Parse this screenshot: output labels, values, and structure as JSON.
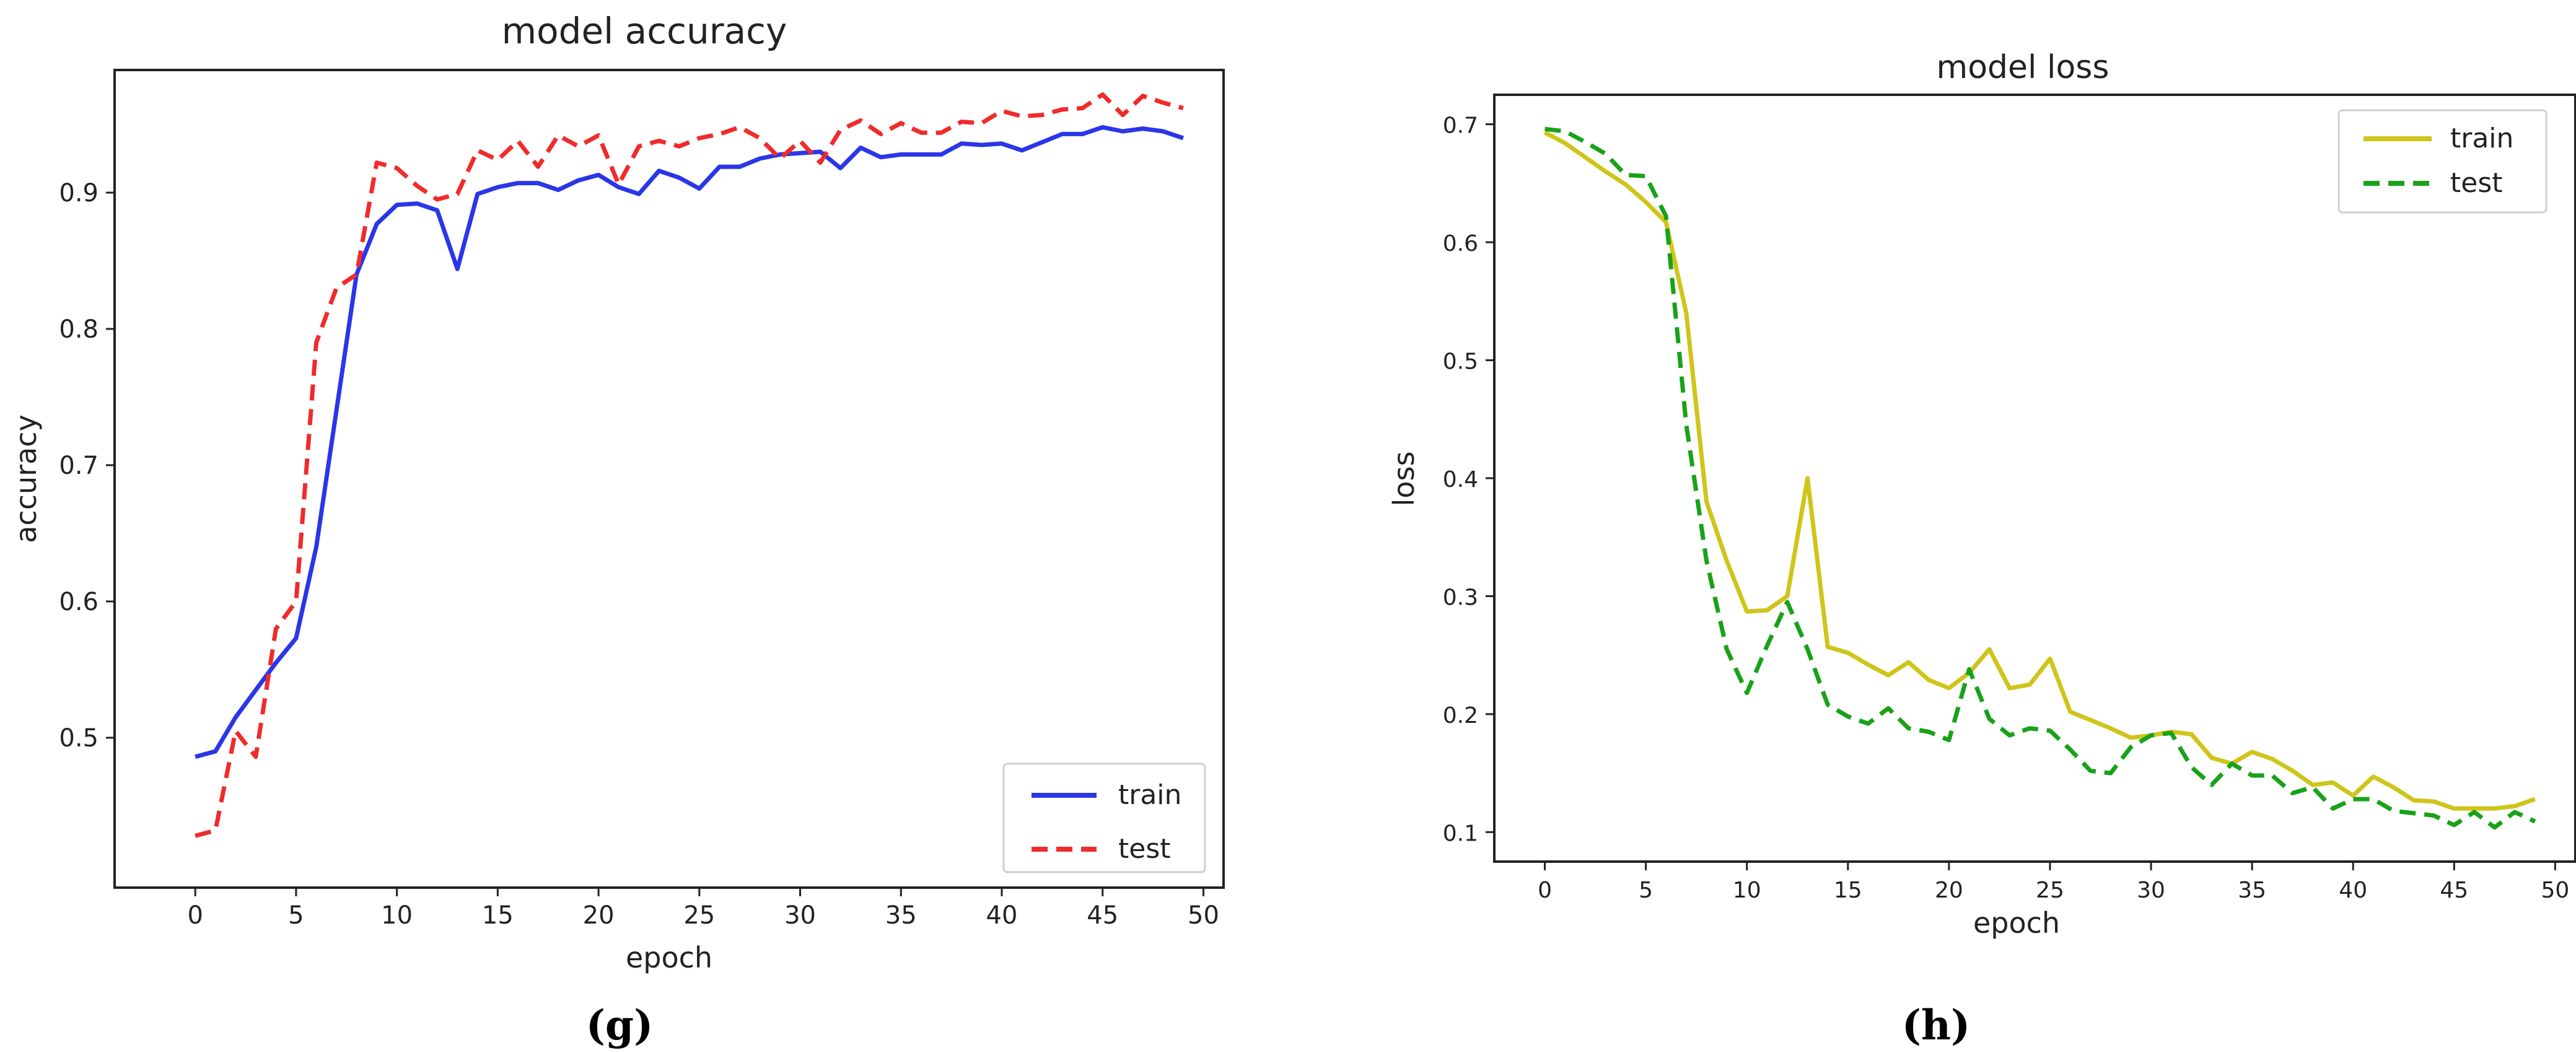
{
  "chart_data": [
    {
      "type": "line",
      "title": "model accuracy",
      "xlabel": "epoch",
      "ylabel": "accuracy",
      "xlim": [
        -4,
        51
      ],
      "ylim": [
        0.39,
        0.99
      ],
      "x_ticks": [
        0,
        5,
        10,
        15,
        20,
        25,
        30,
        35,
        40,
        45,
        50
      ],
      "y_ticks": [
        0.5,
        0.6,
        0.7,
        0.8,
        0.9
      ],
      "y_tick_labels": [
        "0.5",
        "0.6",
        "0.7",
        "0.8",
        "0.9"
      ],
      "grid": false,
      "legend_position": "bottom-right",
      "caption": "(g)",
      "series": [
        {
          "name": "train",
          "color": "#2a36e8",
          "dash": "solid",
          "x": [
            0,
            1,
            2,
            3,
            4,
            5,
            6,
            7,
            8,
            9,
            10,
            11,
            12,
            13,
            14,
            15,
            16,
            17,
            18,
            19,
            20,
            21,
            22,
            23,
            24,
            25,
            26,
            27,
            28,
            29,
            30,
            31,
            32,
            33,
            34,
            35,
            36,
            37,
            38,
            39,
            40,
            41,
            42,
            43,
            44,
            45,
            46,
            47,
            48,
            49
          ],
          "values": [
            0.486,
            0.49,
            0.515,
            0.535,
            0.555,
            0.573,
            0.64,
            0.74,
            0.84,
            0.877,
            0.891,
            0.892,
            0.887,
            0.844,
            0.899,
            0.904,
            0.907,
            0.907,
            0.902,
            0.909,
            0.913,
            0.904,
            0.899,
            0.916,
            0.911,
            0.903,
            0.919,
            0.919,
            0.925,
            0.928,
            0.929,
            0.93,
            0.918,
            0.933,
            0.926,
            0.928,
            0.928,
            0.928,
            0.936,
            0.935,
            0.936,
            0.931,
            0.937,
            0.943,
            0.943,
            0.948,
            0.945,
            0.947,
            0.945,
            0.94
          ]
        },
        {
          "name": "test",
          "color": "#f02b2b",
          "dash": "dashed",
          "x": [
            0,
            1,
            2,
            3,
            4,
            5,
            6,
            7,
            8,
            9,
            10,
            11,
            12,
            13,
            14,
            15,
            16,
            17,
            18,
            19,
            20,
            21,
            22,
            23,
            24,
            25,
            26,
            27,
            28,
            29,
            30,
            31,
            32,
            33,
            34,
            35,
            36,
            37,
            38,
            39,
            40,
            41,
            42,
            43,
            44,
            45,
            46,
            47,
            48,
            49
          ],
          "values": [
            0.428,
            0.432,
            0.505,
            0.486,
            0.58,
            0.6,
            0.79,
            0.83,
            0.84,
            0.922,
            0.918,
            0.905,
            0.895,
            0.899,
            0.931,
            0.924,
            0.938,
            0.919,
            0.942,
            0.934,
            0.942,
            0.906,
            0.934,
            0.938,
            0.934,
            0.94,
            0.943,
            0.948,
            0.94,
            0.925,
            0.938,
            0.922,
            0.946,
            0.953,
            0.943,
            0.951,
            0.944,
            0.944,
            0.952,
            0.951,
            0.96,
            0.956,
            0.957,
            0.961,
            0.962,
            0.972,
            0.957,
            0.971,
            0.966,
            0.962
          ]
        }
      ],
      "legend_title_items": [
        "train",
        "test"
      ]
    },
    {
      "type": "line",
      "title": "model loss",
      "xlabel": "epoch",
      "ylabel": "loss",
      "xlim": [
        -2.5,
        51
      ],
      "ylim": [
        0.075,
        0.725
      ],
      "x_ticks": [
        0,
        5,
        10,
        15,
        20,
        25,
        30,
        35,
        40,
        45,
        50
      ],
      "y_ticks": [
        0.1,
        0.2,
        0.3,
        0.4,
        0.5,
        0.6,
        0.7
      ],
      "y_tick_labels": [
        "0.1",
        "0.2",
        "0.3",
        "0.4",
        "0.5",
        "0.6",
        "0.7"
      ],
      "grid": false,
      "legend_position": "top-right",
      "caption": "(h)",
      "series": [
        {
          "name": "train",
          "color": "#cfc51a",
          "dash": "solid",
          "x": [
            0,
            1,
            2,
            3,
            4,
            5,
            6,
            7,
            8,
            9,
            10,
            11,
            12,
            13,
            14,
            15,
            16,
            17,
            18,
            19,
            20,
            21,
            22,
            23,
            24,
            25,
            26,
            27,
            28,
            29,
            30,
            31,
            32,
            33,
            34,
            35,
            36,
            37,
            38,
            39,
            40,
            41,
            42,
            43,
            44,
            45,
            46,
            47,
            48,
            49
          ],
          "values": [
            0.693,
            0.684,
            0.672,
            0.66,
            0.649,
            0.634,
            0.617,
            0.54,
            0.38,
            0.33,
            0.287,
            0.288,
            0.3,
            0.4,
            0.257,
            0.252,
            0.242,
            0.233,
            0.244,
            0.229,
            0.222,
            0.235,
            0.255,
            0.222,
            0.225,
            0.247,
            0.202,
            0.195,
            0.188,
            0.18,
            0.182,
            0.185,
            0.183,
            0.163,
            0.158,
            0.168,
            0.162,
            0.152,
            0.14,
            0.142,
            0.131,
            0.147,
            0.138,
            0.127,
            0.126,
            0.12,
            0.12,
            0.12,
            0.122,
            0.128
          ]
        },
        {
          "name": "test",
          "color": "#19a219",
          "dash": "dashed",
          "x": [
            0,
            1,
            2,
            3,
            4,
            5,
            6,
            7,
            8,
            9,
            10,
            11,
            12,
            13,
            14,
            15,
            16,
            17,
            18,
            19,
            20,
            21,
            22,
            23,
            24,
            25,
            26,
            27,
            28,
            29,
            30,
            31,
            32,
            33,
            34,
            35,
            36,
            37,
            38,
            39,
            40,
            41,
            42,
            43,
            44,
            45,
            46,
            47,
            48,
            49
          ],
          "values": [
            0.696,
            0.694,
            0.685,
            0.675,
            0.657,
            0.656,
            0.622,
            0.445,
            0.33,
            0.255,
            0.218,
            0.258,
            0.295,
            0.255,
            0.208,
            0.198,
            0.192,
            0.205,
            0.188,
            0.185,
            0.178,
            0.238,
            0.196,
            0.182,
            0.188,
            0.186,
            0.17,
            0.152,
            0.15,
            0.172,
            0.182,
            0.184,
            0.155,
            0.14,
            0.158,
            0.148,
            0.148,
            0.133,
            0.138,
            0.12,
            0.128,
            0.128,
            0.118,
            0.116,
            0.114,
            0.106,
            0.117,
            0.104,
            0.117,
            0.109
          ]
        }
      ]
    }
  ]
}
